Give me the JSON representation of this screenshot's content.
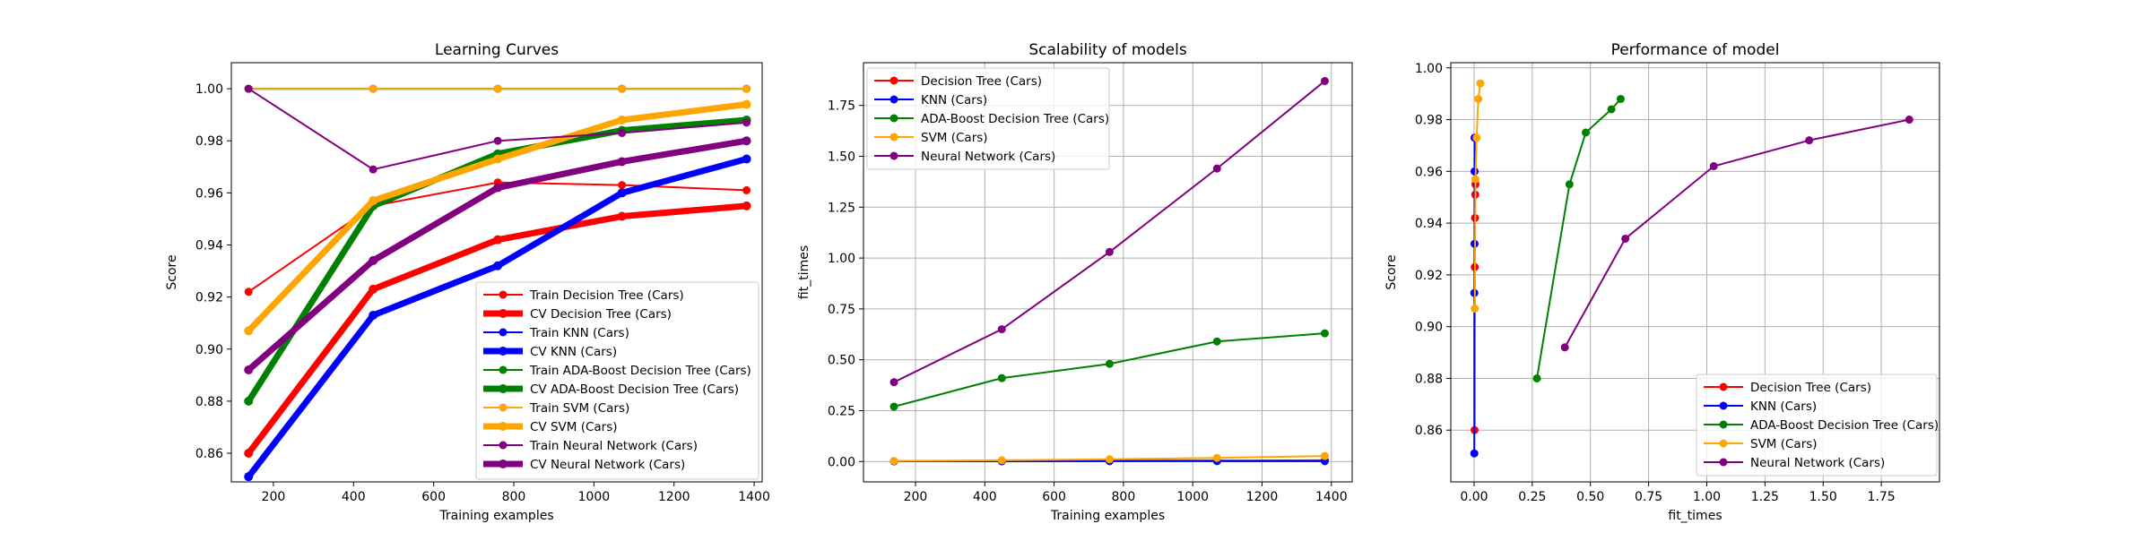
{
  "colors": {
    "red": "#ff0000",
    "blue": "#0000ff",
    "green": "#008000",
    "orange": "#ffa500",
    "purple": "#800080"
  },
  "chart_data": [
    {
      "type": "line",
      "title": "Learning Curves",
      "xlabel": "Training examples",
      "ylabel": "Score",
      "xlim": [
        95,
        1420
      ],
      "ylim": [
        0.849,
        1.01
      ],
      "xticks": [
        200,
        400,
        600,
        800,
        1000,
        1200,
        1400
      ],
      "yticks": [
        0.86,
        0.88,
        0.9,
        0.92,
        0.94,
        0.96,
        0.98,
        1.0
      ],
      "ytick_labels": [
        "0.86",
        "0.88",
        "0.90",
        "0.92",
        "0.94",
        "0.96",
        "0.98",
        "1.00"
      ],
      "grid": false,
      "legend_position": "lower-right",
      "x": [
        138,
        449,
        760,
        1070,
        1381
      ],
      "series": [
        {
          "name": "Train Decision Tree (Cars)",
          "color": "red",
          "style": "thin",
          "values": [
            0.922,
            0.955,
            0.964,
            0.963,
            0.961
          ]
        },
        {
          "name": "CV Decision Tree (Cars)",
          "color": "red",
          "style": "thick",
          "values": [
            0.86,
            0.923,
            0.942,
            0.951,
            0.955
          ]
        },
        {
          "name": "Train KNN (Cars)",
          "color": "blue",
          "style": "thin",
          "values": [
            1.0,
            1.0,
            1.0,
            1.0,
            1.0
          ]
        },
        {
          "name": "CV KNN (Cars)",
          "color": "blue",
          "style": "thick",
          "values": [
            0.851,
            0.913,
            0.932,
            0.96,
            0.973
          ]
        },
        {
          "name": "Train ADA-Boost Decision Tree (Cars)",
          "color": "green",
          "style": "thin",
          "values": [
            1.0,
            1.0,
            1.0,
            1.0,
            1.0
          ]
        },
        {
          "name": "CV ADA-Boost Decision Tree (Cars)",
          "color": "green",
          "style": "thick",
          "values": [
            0.88,
            0.955,
            0.975,
            0.984,
            0.988
          ]
        },
        {
          "name": "Train SVM (Cars)",
          "color": "orange",
          "style": "thin",
          "values": [
            1.0,
            1.0,
            1.0,
            1.0,
            1.0
          ]
        },
        {
          "name": "CV SVM (Cars)",
          "color": "orange",
          "style": "thick",
          "values": [
            0.907,
            0.957,
            0.973,
            0.988,
            0.994
          ]
        },
        {
          "name": "Train Neural Network (Cars)",
          "color": "purple",
          "style": "thin",
          "values": [
            1.0,
            0.969,
            0.98,
            0.983,
            0.987
          ]
        },
        {
          "name": "CV Neural Network (Cars)",
          "color": "purple",
          "style": "thick",
          "values": [
            0.892,
            0.934,
            0.962,
            0.972,
            0.98
          ]
        }
      ]
    },
    {
      "type": "line",
      "title": "Scalability of models",
      "xlabel": "Training examples",
      "ylabel": "fit_times",
      "xlim": [
        50,
        1460
      ],
      "ylim": [
        -0.1,
        1.96
      ],
      "xticks": [
        200,
        400,
        600,
        800,
        1000,
        1200,
        1400
      ],
      "yticks": [
        0.0,
        0.25,
        0.5,
        0.75,
        1.0,
        1.25,
        1.5,
        1.75
      ],
      "ytick_labels": [
        "0.00",
        "0.25",
        "0.50",
        "0.75",
        "1.00",
        "1.25",
        "1.50",
        "1.75"
      ],
      "grid": true,
      "legend_position": "upper-left",
      "x": [
        138,
        449,
        760,
        1070,
        1381
      ],
      "series": [
        {
          "name": "Decision Tree (Cars)",
          "color": "red",
          "values": [
            0.002,
            0.003,
            0.004,
            0.005,
            0.006
          ]
        },
        {
          "name": "KNN (Cars)",
          "color": "blue",
          "values": [
            0.001,
            0.001,
            0.002,
            0.002,
            0.002
          ]
        },
        {
          "name": "ADA-Boost Decision Tree (Cars)",
          "color": "green",
          "values": [
            0.27,
            0.41,
            0.48,
            0.59,
            0.63
          ]
        },
        {
          "name": "SVM (Cars)",
          "color": "orange",
          "values": [
            0.003,
            0.006,
            0.011,
            0.018,
            0.027
          ]
        },
        {
          "name": "Neural Network (Cars)",
          "color": "purple",
          "values": [
            0.39,
            0.65,
            1.03,
            1.44,
            1.87
          ]
        }
      ]
    },
    {
      "type": "line",
      "title": "Performance of model",
      "xlabel": "fit_times",
      "ylabel": "Score",
      "xlim": [
        -0.1,
        2.0
      ],
      "ylim": [
        0.84,
        1.002
      ],
      "xticks": [
        0.0,
        0.25,
        0.5,
        0.75,
        1.0,
        1.25,
        1.5,
        1.75
      ],
      "xtick_labels": [
        "0.00",
        "0.25",
        "0.50",
        "0.75",
        "1.00",
        "1.25",
        "1.50",
        "1.75"
      ],
      "yticks": [
        0.86,
        0.88,
        0.9,
        0.92,
        0.94,
        0.96,
        0.98,
        1.0
      ],
      "ytick_labels": [
        "0.86",
        "0.88",
        "0.90",
        "0.92",
        "0.94",
        "0.96",
        "0.98",
        "1.00"
      ],
      "grid": true,
      "legend_position": "lower-right",
      "series": [
        {
          "name": "Decision Tree (Cars)",
          "color": "red",
          "x": [
            0.002,
            0.003,
            0.004,
            0.005,
            0.006
          ],
          "y": [
            0.86,
            0.923,
            0.942,
            0.951,
            0.955
          ]
        },
        {
          "name": "KNN (Cars)",
          "color": "blue",
          "x": [
            0.001,
            0.001,
            0.002,
            0.002,
            0.002
          ],
          "y": [
            0.851,
            0.913,
            0.932,
            0.96,
            0.973
          ]
        },
        {
          "name": "ADA-Boost Decision Tree (Cars)",
          "color": "green",
          "x": [
            0.27,
            0.41,
            0.48,
            0.59,
            0.63
          ],
          "y": [
            0.88,
            0.955,
            0.975,
            0.984,
            0.988
          ]
        },
        {
          "name": "SVM (Cars)",
          "color": "orange",
          "x": [
            0.003,
            0.006,
            0.011,
            0.018,
            0.027
          ],
          "y": [
            0.907,
            0.957,
            0.973,
            0.988,
            0.994
          ]
        },
        {
          "name": "Neural Network (Cars)",
          "color": "purple",
          "x": [
            0.39,
            0.65,
            1.03,
            1.44,
            1.87
          ],
          "y": [
            0.892,
            0.934,
            0.962,
            0.972,
            0.98
          ]
        }
      ]
    }
  ]
}
